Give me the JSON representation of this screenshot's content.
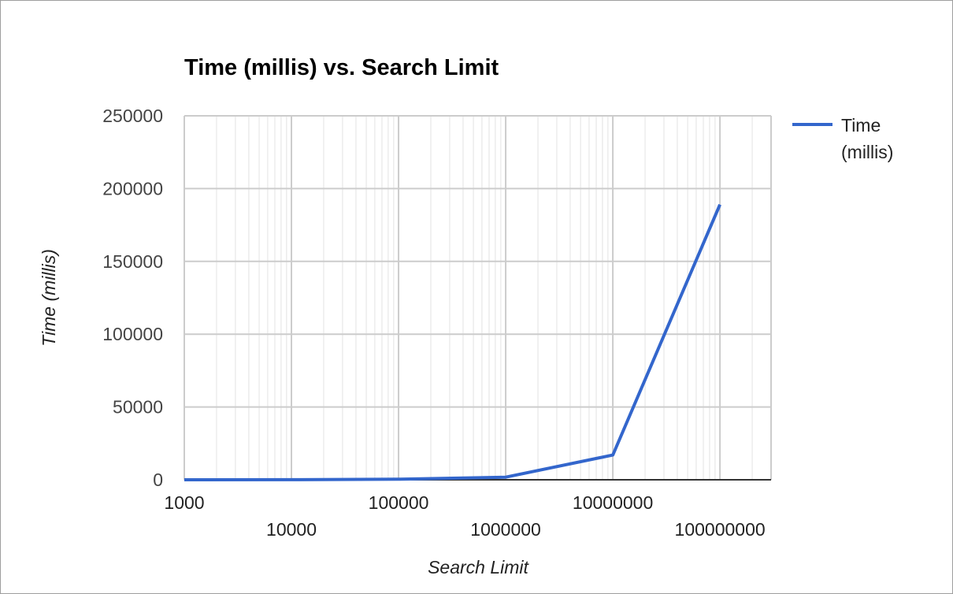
{
  "chart_data": {
    "type": "line",
    "title": "Time (millis) vs. Search Limit",
    "xlabel": "Search Limit",
    "ylabel": "Time (millis)",
    "xscale": "log",
    "xlim": [
      1000,
      300000000
    ],
    "ylim": [
      0,
      250000
    ],
    "grid": true,
    "legend_position": "right",
    "x_ticks_row1": [
      "1000",
      "100000",
      "10000000"
    ],
    "x_ticks_row2": [
      "10000",
      "1000000",
      "100000000"
    ],
    "x_tick_values_row1": [
      1000,
      100000,
      10000000
    ],
    "x_tick_values_row2": [
      10000,
      1000000,
      100000000
    ],
    "y_ticks": [
      "0",
      "50000",
      "100000",
      "150000",
      "200000",
      "250000"
    ],
    "y_tick_values": [
      0,
      50000,
      100000,
      150000,
      200000,
      250000
    ],
    "series": [
      {
        "name": "Time (millis)",
        "name_lines": [
          "Time",
          "(millis)"
        ],
        "color": "#3366cc",
        "x": [
          1000,
          10000,
          100000,
          1000000,
          10000000,
          100000000
        ],
        "y": [
          0,
          50,
          400,
          1800,
          17000,
          189000
        ]
      }
    ]
  }
}
